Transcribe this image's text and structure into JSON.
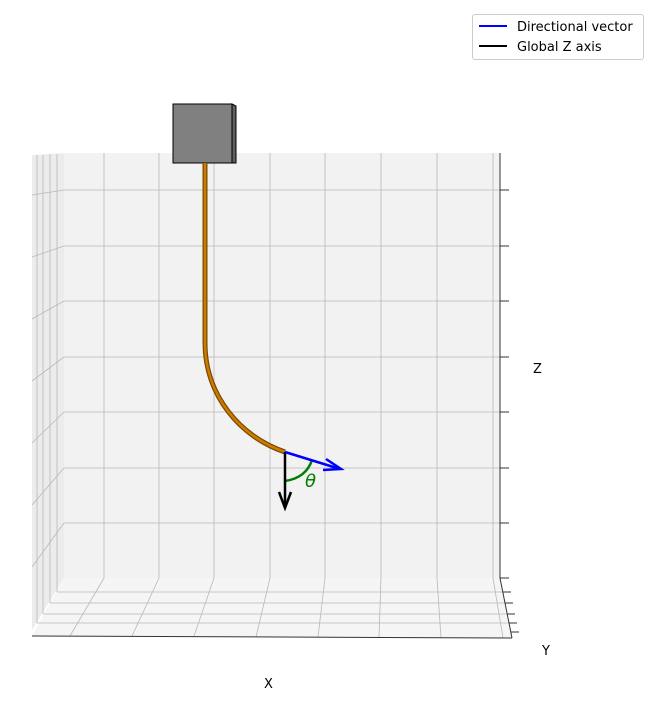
{
  "legend": {
    "items": [
      {
        "label": "Directional vector",
        "color": "#0000ff"
      },
      {
        "label": "Global Z axis",
        "color": "#000000"
      }
    ]
  },
  "axes": {
    "x_label": "X",
    "y_label": "Y",
    "z_label": "Z"
  },
  "angle": {
    "symbol": "θ",
    "color": "#008000"
  },
  "colors": {
    "rod": "#cc7a00",
    "rod_outline": "#7a4a00",
    "block": "#808080",
    "pane": "#f2f2f2",
    "grid": "#b0b0b0",
    "directional_vector": "#0000ff",
    "global_z": "#000000"
  }
}
